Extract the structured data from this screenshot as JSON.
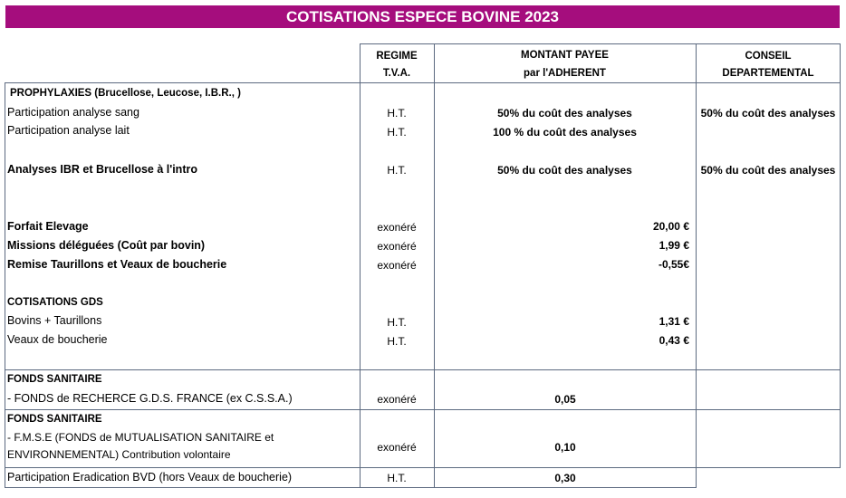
{
  "title": "COTISATIONS ESPECE BOVINE 2023",
  "headers": {
    "regime_1": "REGIME",
    "regime_2": "T.V.A.",
    "montant_1": "MONTANT PAYEE",
    "montant_2": "par l'ADHERENT",
    "conseil_1": "CONSEIL",
    "conseil_2": "DEPARTEMENTAL"
  },
  "prophylaxies": {
    "heading": "PROPHYLAXIES (Brucellose, Leucose, I.B.R., )",
    "sang": {
      "label": "Participation analyse sang",
      "regime": "H.T.",
      "montant": "50% du coût des analyses",
      "conseil": "50% du coût des analyses"
    },
    "lait": {
      "label": "Participation analyse lait",
      "regime": "H.T.",
      "montant": "100 % du coût des analyses"
    },
    "intro": {
      "label": "Analyses IBR et Brucellose à l'intro",
      "regime": "H.T.",
      "montant": "50% du coût des analyses",
      "conseil": "50% du coût des analyses"
    }
  },
  "forfait": {
    "label": "Forfait Elevage",
    "regime": "exonéré",
    "montant": "20,00 €"
  },
  "missions": {
    "label": "Missions déléguées (Coût par bovin)",
    "regime": "exonéré",
    "montant": "1,99 €"
  },
  "remise": {
    "label": "Remise Taurillons et Veaux de boucherie",
    "regime": "exonéré",
    "montant": "-0,55€"
  },
  "gds": {
    "heading": "COTISATIONS GDS",
    "bovins": {
      "label": "Bovins + Taurillons",
      "regime": "H.T.",
      "montant": "1,31 €"
    },
    "veaux": {
      "label": "Veaux de boucherie",
      "regime": "H.T.",
      "montant": "0,43 €"
    }
  },
  "fonds1": {
    "heading": "FONDS SANITAIRE",
    "label": "- FONDS de RECHERCE G.D.S. FRANCE (ex C.S.S.A.)",
    "regime": "exonéré",
    "montant": "0,05"
  },
  "fonds2": {
    "heading": "FONDS SANITAIRE",
    "label_1": "- F.M.S.E (FONDS de MUTUALISATION SANITAIRE et",
    "label_2": "ENVIRONNEMENTAL) Contribution volontaire",
    "regime": "exonéré",
    "montant": "0,10"
  },
  "bvd": {
    "label": "Participation Eradication BVD (hors Veaux de boucherie)",
    "regime": "H.T.",
    "montant": "0,30"
  }
}
